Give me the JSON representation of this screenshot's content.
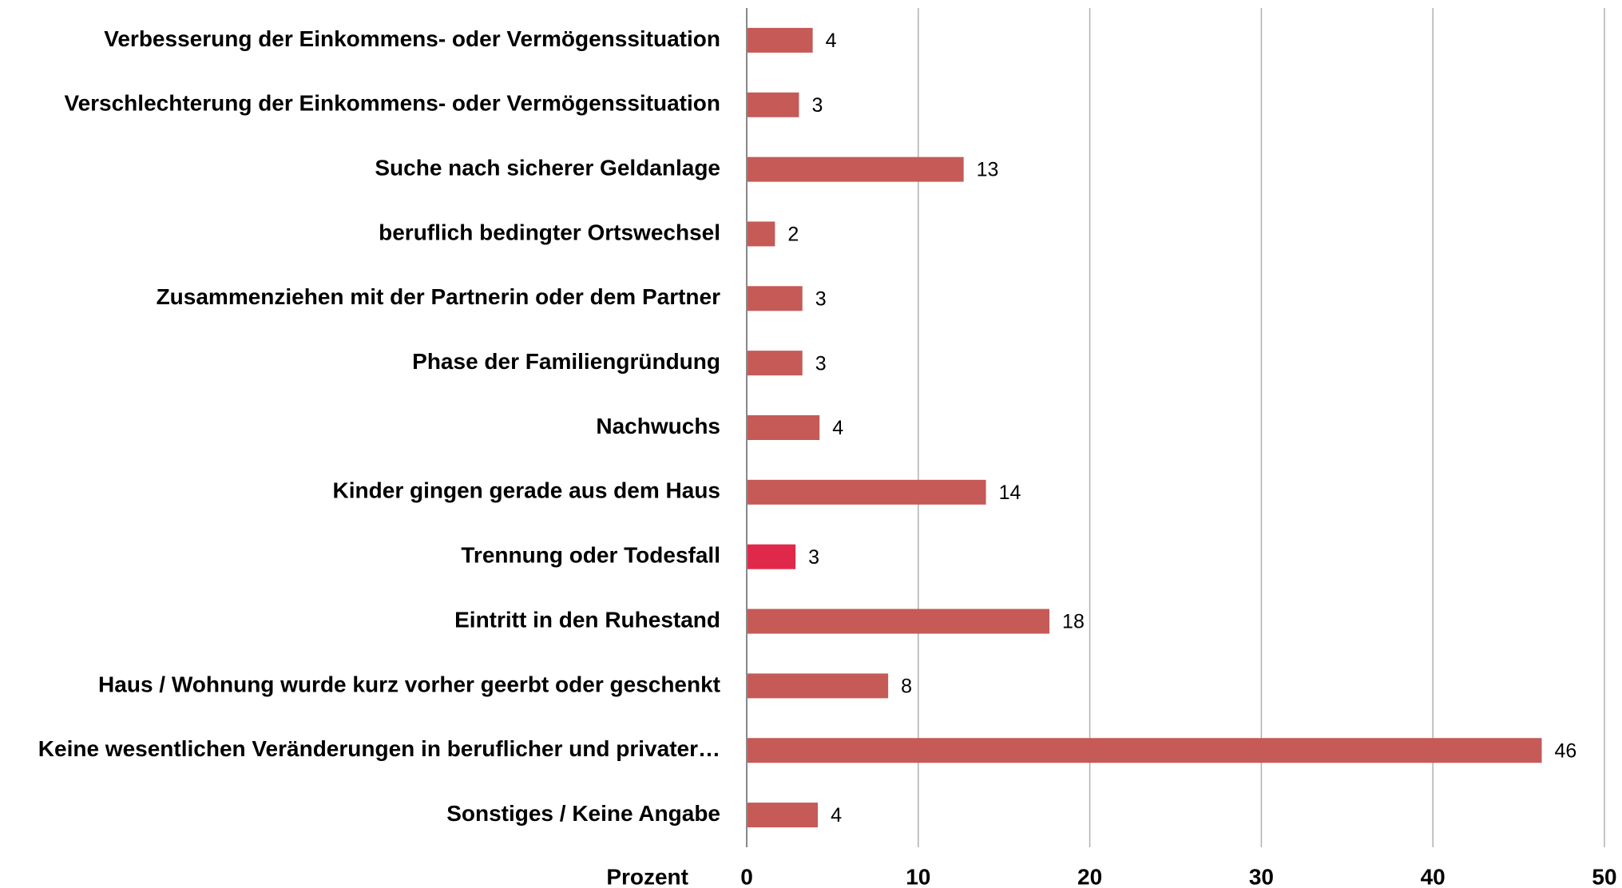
{
  "chart_data": {
    "type": "barh",
    "xlabel": "Prozent",
    "categories": [
      "Verbesserung der Einkommens- oder Vermögenssituation",
      "Verschlechterung der Einkommens- oder Vermögenssituation",
      "Suche nach sicherer Geldanlage",
      "beruflich bedingter Ortswechsel",
      "Zusammenziehen mit der Partnerin oder dem Partner",
      "Phase der Familiengründung",
      "Nachwuchs",
      "Kinder gingen gerade aus dem Haus",
      "Trennung oder Todesfall",
      "Eintritt in den Ruhestand",
      "Haus / Wohnung wurde kurz vorher geerbt oder geschenkt",
      "Keine wesentlichen Veränderungen in beruflicher und privater…",
      "Sonstiges / Keine Angabe"
    ],
    "values": [
      3.8,
      3.0,
      12.6,
      1.6,
      3.2,
      3.2,
      4.2,
      13.9,
      2.8,
      17.6,
      8.2,
      46.3,
      4.1
    ],
    "value_labels": [
      "4",
      "3",
      "13",
      "2",
      "3",
      "3",
      "4",
      "14",
      "3",
      "18",
      "8",
      "46",
      "4"
    ],
    "colors": [
      "#c55a57",
      "#c55a57",
      "#c55a57",
      "#c55a57",
      "#c55a57",
      "#c55a57",
      "#c55a57",
      "#c55a57",
      "#e0294a",
      "#c55a57",
      "#c55a57",
      "#c55a57",
      "#c55a57"
    ],
    "xlim": [
      0,
      50
    ],
    "xticks": [
      0,
      10,
      20,
      30,
      40,
      50
    ],
    "grid": true
  }
}
